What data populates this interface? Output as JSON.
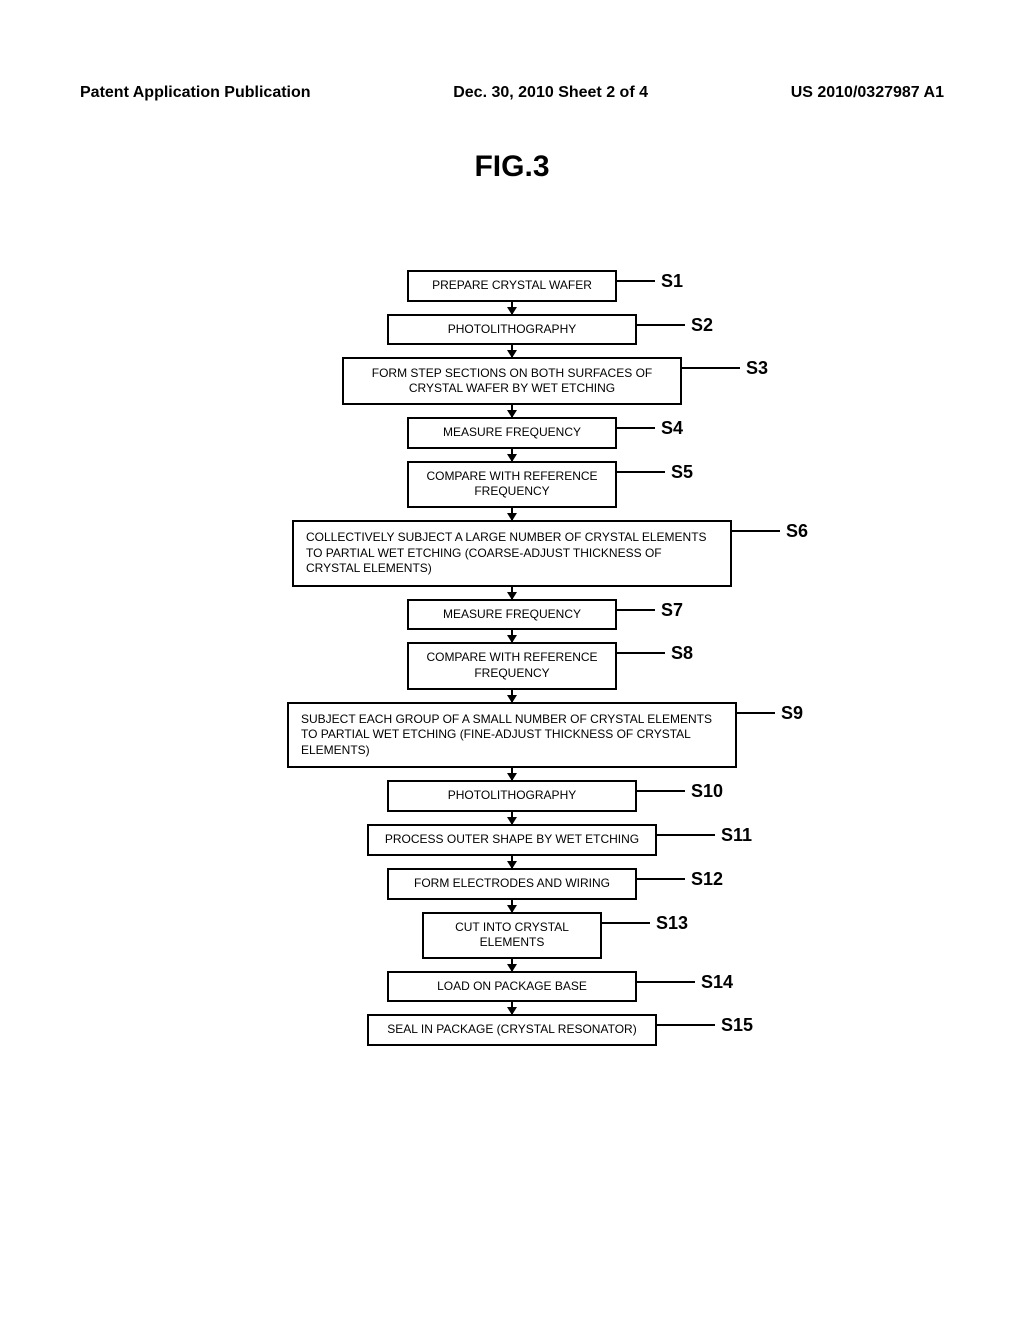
{
  "header": {
    "left": "Patent Application Publication",
    "center": "Dec. 30, 2010  Sheet 2 of 4",
    "right": "US 2010/0327987 A1"
  },
  "figure_title": "FIG.3",
  "steps": [
    {
      "id": "S1",
      "text": "PREPARE CRYSTAL WAFER",
      "size": "sm"
    },
    {
      "id": "S2",
      "text": "PHOTOLITHOGRAPHY",
      "size": "md"
    },
    {
      "id": "S3",
      "text": "FORM STEP SECTIONS ON BOTH SURFACES OF\nCRYSTAL WAFER BY WET ETCHING",
      "size": "lg"
    },
    {
      "id": "S4",
      "text": "MEASURE FREQUENCY",
      "size": "sm"
    },
    {
      "id": "S5",
      "text": "COMPARE WITH REFERENCE\nFREQUENCY",
      "size": "sm"
    },
    {
      "id": "S6",
      "text": "COLLECTIVELY SUBJECT A LARGE NUMBER OF CRYSTAL ELEMENTS\nTO PARTIAL WET ETCHING (COARSE-ADJUST THICKNESS OF\nCRYSTAL ELEMENTS)",
      "size": "xl"
    },
    {
      "id": "S7",
      "text": "MEASURE FREQUENCY",
      "size": "sm"
    },
    {
      "id": "S8",
      "text": "COMPARE WITH REFERENCE\nFREQUENCY",
      "size": "sm"
    },
    {
      "id": "S9",
      "text": "SUBJECT EACH GROUP OF A SMALL NUMBER OF CRYSTAL ELEMENTS\nTO PARTIAL WET ETCHING (FINE-ADJUST THICKNESS OF CRYSTAL\nELEMENTS)",
      "size": "xxl"
    },
    {
      "id": "S10",
      "text": "PHOTOLITHOGRAPHY",
      "size": "md"
    },
    {
      "id": "S11",
      "text": "PROCESS OUTER SHAPE BY WET ETCHING",
      "size": "mdl"
    },
    {
      "id": "S12",
      "text": "FORM ELECTRODES AND WIRING",
      "size": "md"
    },
    {
      "id": "S13",
      "text": "CUT INTO CRYSTAL\nELEMENTS",
      "size": "xs"
    },
    {
      "id": "S14",
      "text": "LOAD ON PACKAGE BASE",
      "size": "md"
    },
    {
      "id": "S15",
      "text": "SEAL IN PACKAGE (CRYSTAL RESONATOR)",
      "size": "mdl"
    }
  ],
  "layout": {
    "label_offsets": {
      "S1": 40,
      "S2": 50,
      "S3": 60,
      "S4": 40,
      "S5": 50,
      "S6": 50,
      "S7": 40,
      "S8": 50,
      "S9": 40,
      "S10": 50,
      "S11": 60,
      "S12": 50,
      "S13": 50,
      "S14": 60,
      "S15": 60
    }
  }
}
